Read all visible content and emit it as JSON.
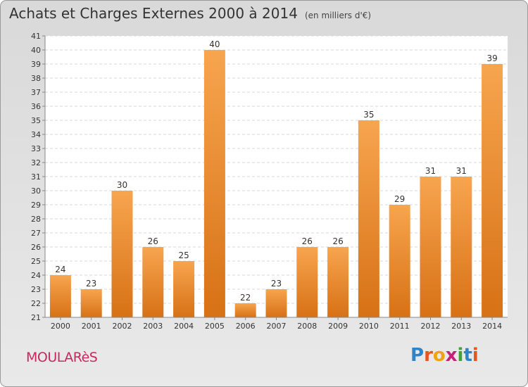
{
  "header": {
    "title": "Achats et Charges Externes 2000 à 2014",
    "unit": "(en milliers d'€)"
  },
  "footer": {
    "commune": "MOULARèS",
    "brand": "Proxiti",
    "brand_letters": [
      {
        "ch": "P",
        "color": "#2f84c8"
      },
      {
        "ch": "r",
        "color": "#e8541f"
      },
      {
        "ch": "o",
        "color": "#f0a312"
      },
      {
        "ch": "x",
        "color": "#c6207a"
      },
      {
        "ch": "i",
        "color": "#3ea535"
      },
      {
        "ch": "t",
        "color": "#2f84c8"
      },
      {
        "ch": "i",
        "color": "#e8541f"
      }
    ]
  },
  "chart_data": {
    "type": "bar",
    "categories": [
      "2000",
      "2001",
      "2002",
      "2003",
      "2004",
      "2005",
      "2006",
      "2007",
      "2008",
      "2009",
      "2010",
      "2011",
      "2012",
      "2013",
      "2014"
    ],
    "values": [
      24,
      23,
      30,
      26,
      25,
      40,
      22,
      23,
      26,
      26,
      35,
      29,
      31,
      31,
      39
    ],
    "ylim": [
      21,
      41
    ],
    "yticks": [
      21,
      22,
      23,
      24,
      25,
      26,
      27,
      28,
      29,
      30,
      31,
      32,
      33,
      34,
      35,
      36,
      37,
      38,
      39,
      40,
      41
    ],
    "grid": true,
    "bar_color_top": "#f7a54f",
    "bar_color_bottom": "#d77115"
  }
}
